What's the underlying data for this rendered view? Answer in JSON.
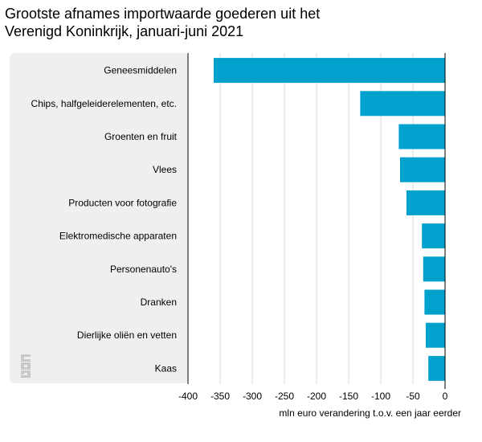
{
  "title_lines": [
    "Grootste afnames importwaarde goederen uit het",
    "Verenigd Koninkrijk, januari-juni 2021"
  ],
  "colors": {
    "bar": "#00a1cd",
    "panel": "#efefef",
    "grid": "#d9d9d9",
    "logo": "#c8c8c8"
  },
  "logo": {
    "icon": "cbs-logo-icon",
    "text": "cbs"
  },
  "chart_data": {
    "type": "bar",
    "orientation": "horizontal",
    "categories": [
      "Geneesmiddelen",
      "Chips, halfgeleiderelementen, etc.",
      "Groenten en fruit",
      "Vlees",
      "Producten voor fotografie",
      "Elektromedische apparaten",
      "Personenauto's",
      "Dranken",
      "Dierlijke oliën en vetten",
      "Kaas"
    ],
    "values": [
      -360,
      -132,
      -72,
      -70,
      -60,
      -36,
      -34,
      -32,
      -30,
      -26
    ],
    "xlabel": "mln euro verandering t.o.v. een jaar eerder",
    "xlim": [
      -400,
      0
    ],
    "xticks": [
      -400,
      -350,
      -300,
      -250,
      -200,
      -150,
      -100,
      -50,
      0
    ],
    "grid": true
  }
}
